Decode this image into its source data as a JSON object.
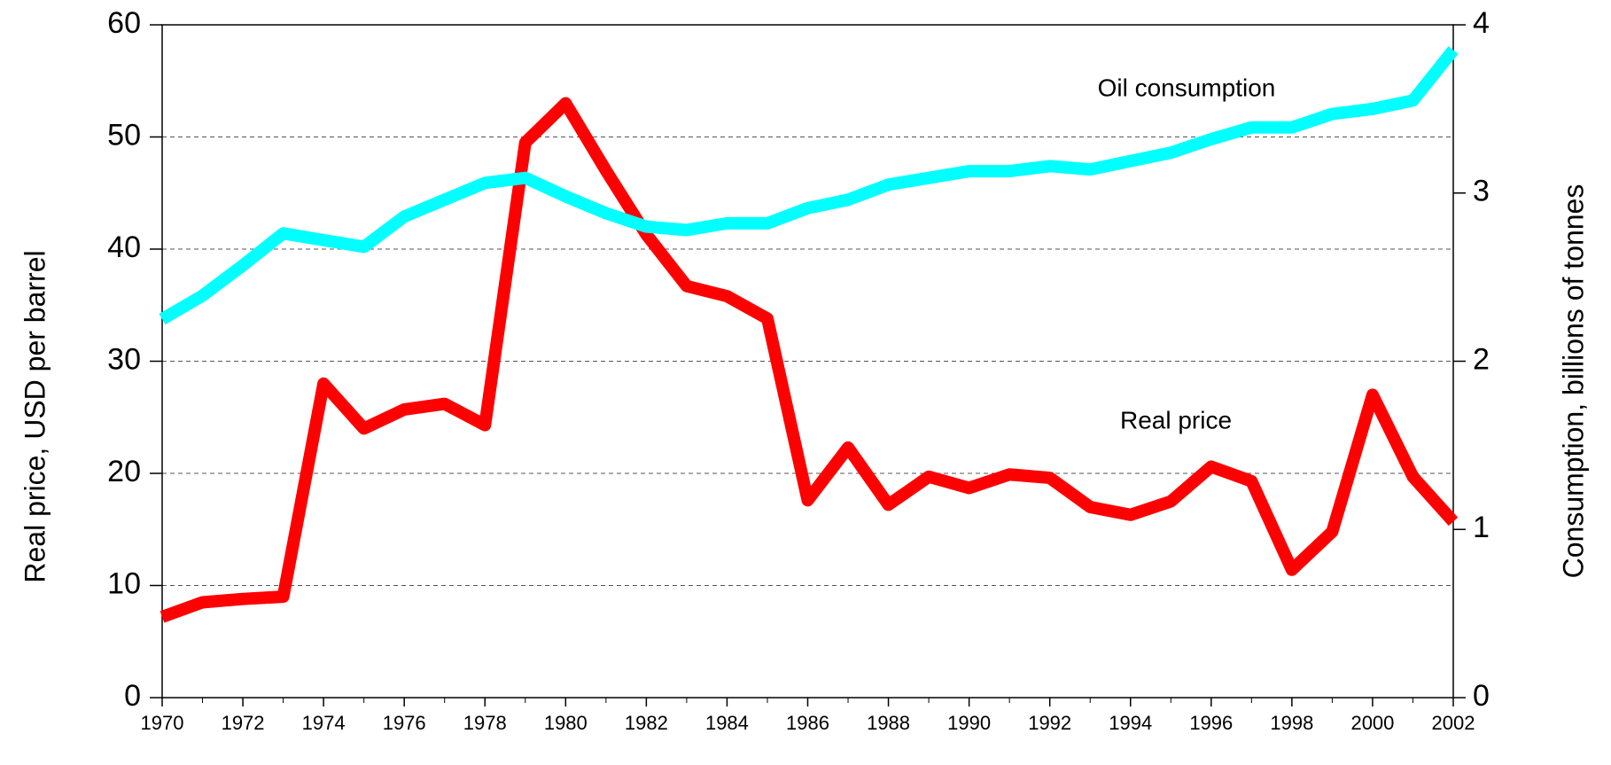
{
  "chart_data": {
    "type": "line",
    "y_label": "Real price, USD per barrel",
    "y2_label": "Consumption, billions of tonnes",
    "x": [
      1970,
      1971,
      1972,
      1973,
      1974,
      1975,
      1976,
      1977,
      1978,
      1979,
      1980,
      1981,
      1982,
      1983,
      1984,
      1985,
      1986,
      1987,
      1988,
      1989,
      1990,
      1991,
      1992,
      1993,
      1994,
      1995,
      1996,
      1997,
      1998,
      1999,
      2000,
      2001,
      2002
    ],
    "series": [
      {
        "name": "Real price",
        "color": "#ff0000",
        "axis": "y",
        "values": [
          7.2,
          8.5,
          8.8,
          9.0,
          28,
          24,
          25.7,
          26.2,
          24.3,
          49.5,
          53,
          47,
          41.3,
          36.7,
          35.8,
          33.8,
          17.6,
          22.3,
          17.2,
          19.7,
          18.7,
          19.9,
          19.6,
          17,
          16.3,
          17.5,
          20.6,
          19.3,
          11.4,
          14.8,
          27,
          19.7,
          15.7
        ]
      },
      {
        "name": "Oil consumption",
        "color": "#00ffff",
        "axis": "y2",
        "values": [
          2.25,
          2.39,
          2.57,
          2.76,
          2.72,
          2.68,
          2.86,
          2.96,
          3.06,
          3.09,
          2.98,
          2.88,
          2.8,
          2.78,
          2.82,
          2.82,
          2.91,
          2.96,
          3.05,
          3.09,
          3.13,
          3.13,
          3.16,
          3.14,
          3.19,
          3.24,
          3.32,
          3.39,
          3.39,
          3.47,
          3.5,
          3.55,
          3.85
        ]
      }
    ],
    "xlim": [
      1970,
      2002
    ],
    "xticks": [
      1970,
      1972,
      1974,
      1976,
      1978,
      1980,
      1982,
      1984,
      1986,
      1988,
      1990,
      1992,
      1994,
      1996,
      1998,
      2000,
      2002
    ],
    "ylim": [
      0,
      60
    ],
    "yticks": [
      0,
      10,
      20,
      30,
      40,
      50,
      60
    ],
    "y2lim": [
      0,
      4
    ],
    "y2ticks": [
      0,
      1,
      2,
      3,
      4
    ],
    "grid": true
  }
}
